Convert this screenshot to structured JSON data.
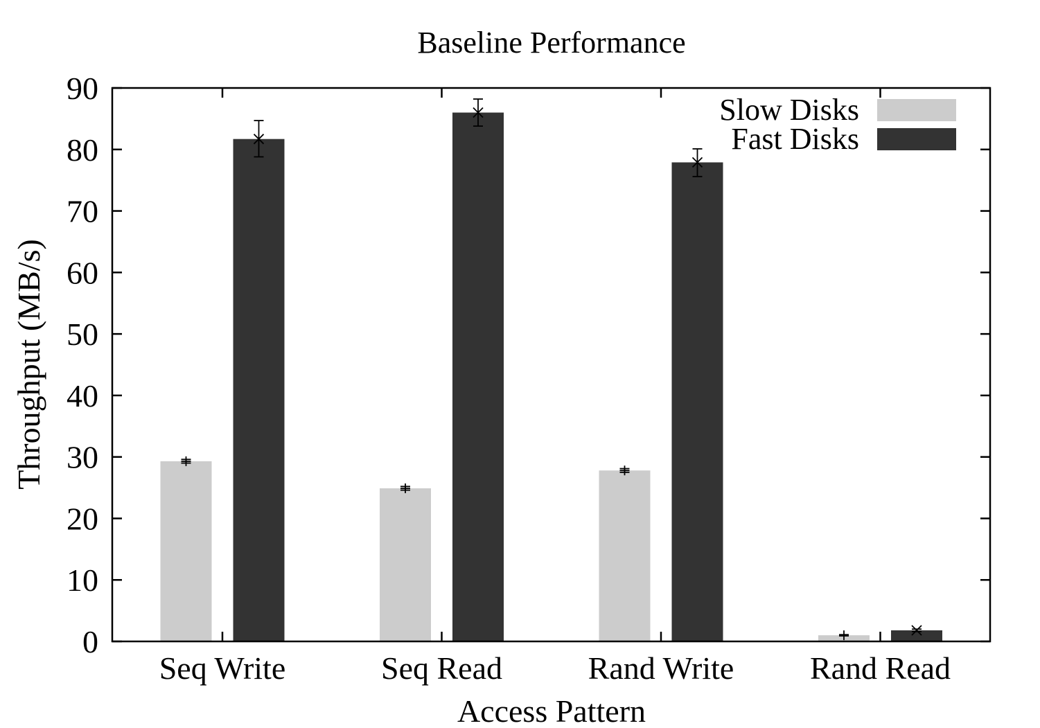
{
  "chart_data": {
    "type": "bar",
    "title": "Baseline Performance",
    "xlabel": "Access Pattern",
    "ylabel": "Throughput (MB/s)",
    "ylim": [
      0,
      90
    ],
    "yticks": [
      0,
      10,
      20,
      30,
      40,
      50,
      60,
      70,
      80,
      90
    ],
    "categories": [
      "Seq Write",
      "Seq Read",
      "Rand Write",
      "Rand Read"
    ],
    "series": [
      {
        "name": "Slow Disks",
        "color": "#cccccc",
        "values": [
          29.3,
          24.9,
          27.8,
          1.0
        ],
        "error_low": [
          29.0,
          24.6,
          27.5,
          0.9
        ],
        "error_high": [
          29.6,
          25.2,
          28.1,
          1.1
        ],
        "marker": "+"
      },
      {
        "name": "Fast Disks",
        "color": "#333333",
        "values": [
          81.7,
          86.0,
          77.9,
          1.8
        ],
        "error_low": [
          78.8,
          83.8,
          75.6,
          1.6
        ],
        "error_high": [
          84.7,
          88.2,
          80.1,
          2.0
        ],
        "marker": "x"
      }
    ],
    "legend_position": "top-right",
    "grid": false
  }
}
